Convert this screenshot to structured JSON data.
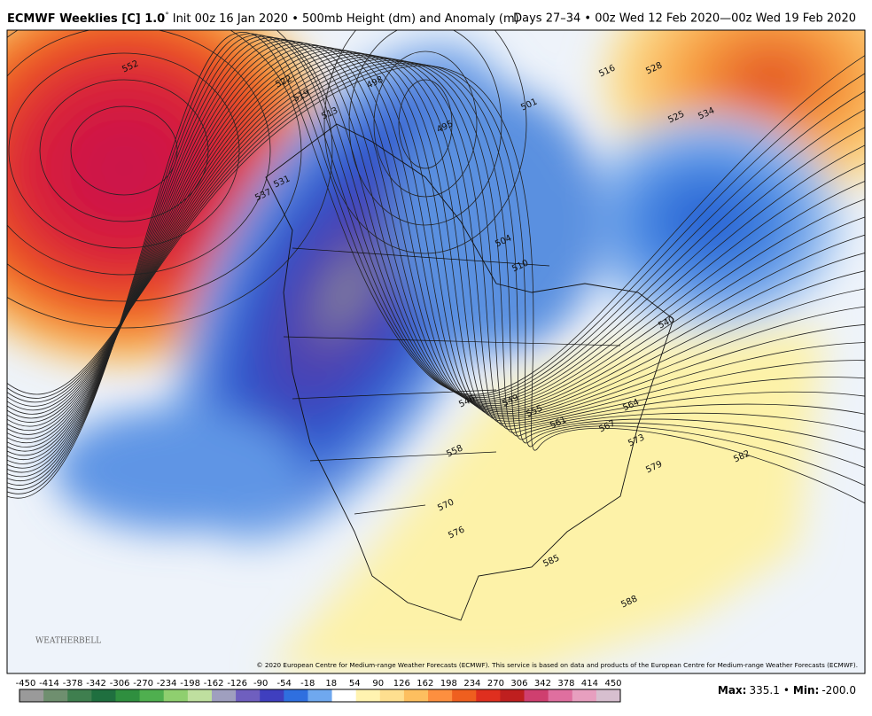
{
  "header": {
    "title": "ECMWF Weeklies [C] 1.0",
    "degree": "°",
    "subtitle": "Init 00z 16 Jan 2020 • 500mb Height (dm) and Anomaly (m)",
    "valid": "Days 27–34 • 00z Wed 12 Feb 2020—00z Wed 19 Feb 2020"
  },
  "map": {
    "contour_labels": [
      "552",
      "522",
      "519",
      "513",
      "498",
      "537",
      "531",
      "495",
      "501",
      "516",
      "528",
      "525",
      "534",
      "504",
      "510",
      "540",
      "546",
      "549",
      "555",
      "561",
      "564",
      "567",
      "573",
      "558",
      "570",
      "576",
      "579",
      "582",
      "585",
      "588"
    ],
    "copyright": "© 2020 European Centre for Medium-range Weather Forecasts (ECMWF). This service is based on data and products of the European Centre for Medium-range Weather Forecasts (ECMWF).",
    "logo": "WEATHERBELL"
  },
  "colorbar": {
    "labels": [
      -450,
      -414,
      -378,
      -342,
      -306,
      -270,
      -234,
      -198,
      -162,
      -126,
      -90,
      -54,
      -18,
      18,
      54,
      90,
      126,
      162,
      198,
      234,
      270,
      306,
      342,
      378,
      414,
      450
    ],
    "colors": [
      "#9a9a9a",
      "#6f8f6f",
      "#3f7f4f",
      "#1f6f3f",
      "#2f8f3f",
      "#4faf4f",
      "#8fcf6f",
      "#bfdf9f",
      "#9f9fbf",
      "#6f5fbf",
      "#3f3fbf",
      "#2f6fdf",
      "#6fa8ef",
      "#ffffff",
      "#fff3b0",
      "#fedf8f",
      "#fdbf5f",
      "#fd8f3f",
      "#ef5f1f",
      "#df2f1f",
      "#bf1f1f",
      "#cf3f6f",
      "#df6f9f",
      "#e79fbf",
      "#d7bfcf"
    ]
  },
  "stats": {
    "max_label": "Max:",
    "max": "335.1",
    "sep": "•",
    "min_label": "Min:",
    "min": "-200.0"
  }
}
